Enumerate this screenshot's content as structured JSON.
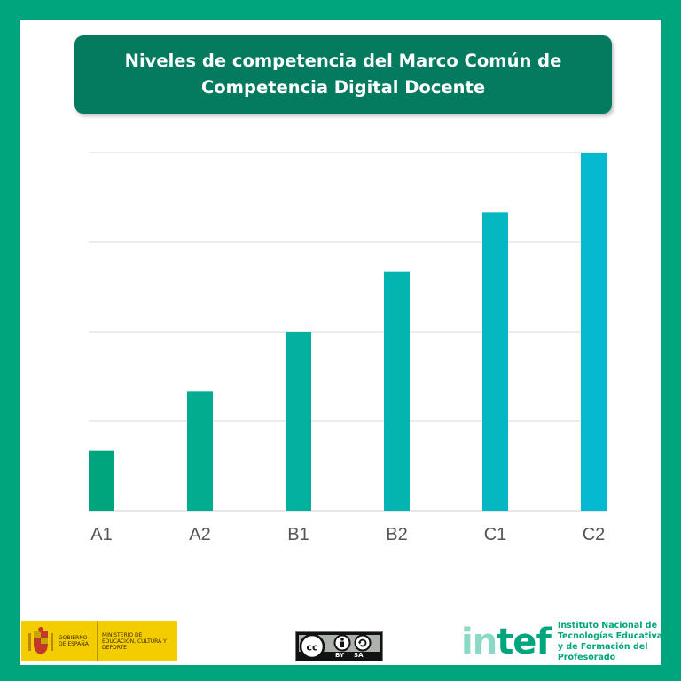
{
  "title": "Niveles de competencia del Marco Común de Competencia Digital Docente",
  "chart_data": {
    "type": "bar",
    "title": "Niveles de competencia del Marco Común de Competencia Digital Docente",
    "xlabel": "",
    "ylabel": "",
    "categories": [
      "A1",
      "A2",
      "B1",
      "B2",
      "C1",
      "C2"
    ],
    "values": [
      1,
      2,
      3,
      4,
      5,
      6
    ],
    "ylim": [
      0,
      6
    ],
    "grid": true,
    "legend": "none",
    "colors": [
      "#00a57e",
      "#01ac8f",
      "#03b1a0",
      "#04b4b0",
      "#04b7c0",
      "#05b9d0"
    ]
  },
  "footer": {
    "gobierno_text": "GOBIERNO DE ESPAÑA",
    "ministerio_text": "MINISTERIO DE EDUCACIÓN, CULTURA Y DEPORTE",
    "cc_by": "BY",
    "cc_sa": "SA",
    "intef_in": "in",
    "intef_tef": "tef",
    "intef_desc": "Instituto Nacional de Tecnologías Educativas y de Formación del Profesorado"
  },
  "colors": {
    "frame": "#00a57e",
    "title_bg": "#047a5f",
    "grid": "#d9d9d9"
  }
}
